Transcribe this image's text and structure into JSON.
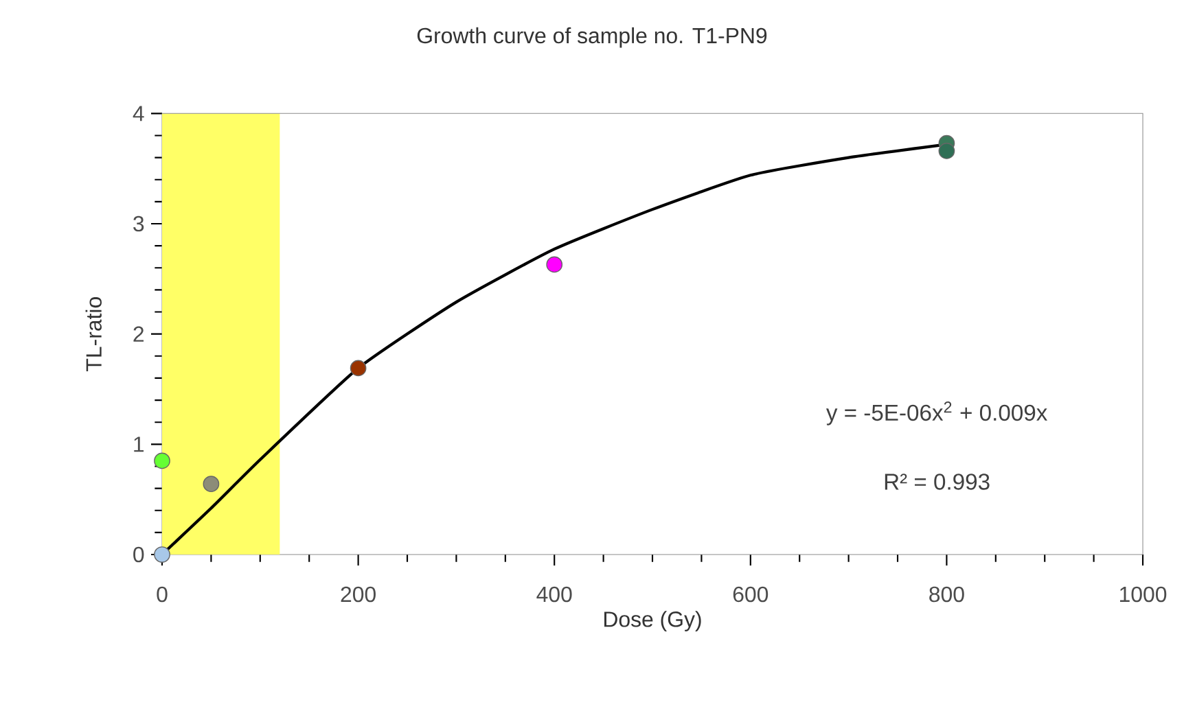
{
  "chart_data": {
    "type": "scatter",
    "title": "Growth curve of sample no. T1-PN9",
    "xlabel": "Dose (Gy)",
    "ylabel": "TL-ratio",
    "xlim": [
      0,
      1000
    ],
    "xticks": [
      0,
      200,
      400,
      600,
      800,
      1000
    ],
    "ylim": [
      0,
      4
    ],
    "yticks": [
      0,
      1,
      2,
      3,
      4
    ],
    "grid": false,
    "series": [
      {
        "type": "line",
        "color": "#000000",
        "marker": "none",
        "x": [
          0,
          50,
          100,
          200,
          300,
          400,
          500,
          600,
          700,
          800
        ],
        "values": [
          0,
          0.42,
          0.86,
          1.69,
          2.29,
          2.77,
          3.13,
          3.44,
          3.6,
          3.72
        ]
      },
      {
        "type": "scatter",
        "marker": "circle",
        "x": [
          0,
          0,
          50,
          200,
          400,
          800,
          800
        ],
        "values": [
          0,
          0.85,
          0.64,
          1.69,
          2.63,
          3.73,
          3.66
        ],
        "colors": [
          "#a8c8e8",
          "#66ff33",
          "#8c8c78",
          "#993300",
          "#ff00ff",
          "#3a7a5a",
          "#2f6f55"
        ]
      }
    ],
    "bands": [
      {
        "axis": "x",
        "from": 0,
        "to": 120,
        "color": "#ffff66"
      }
    ],
    "annotations": [
      "y = -5E-06x$^{2}$ + 0.009x",
      "R² = 0.993"
    ]
  }
}
